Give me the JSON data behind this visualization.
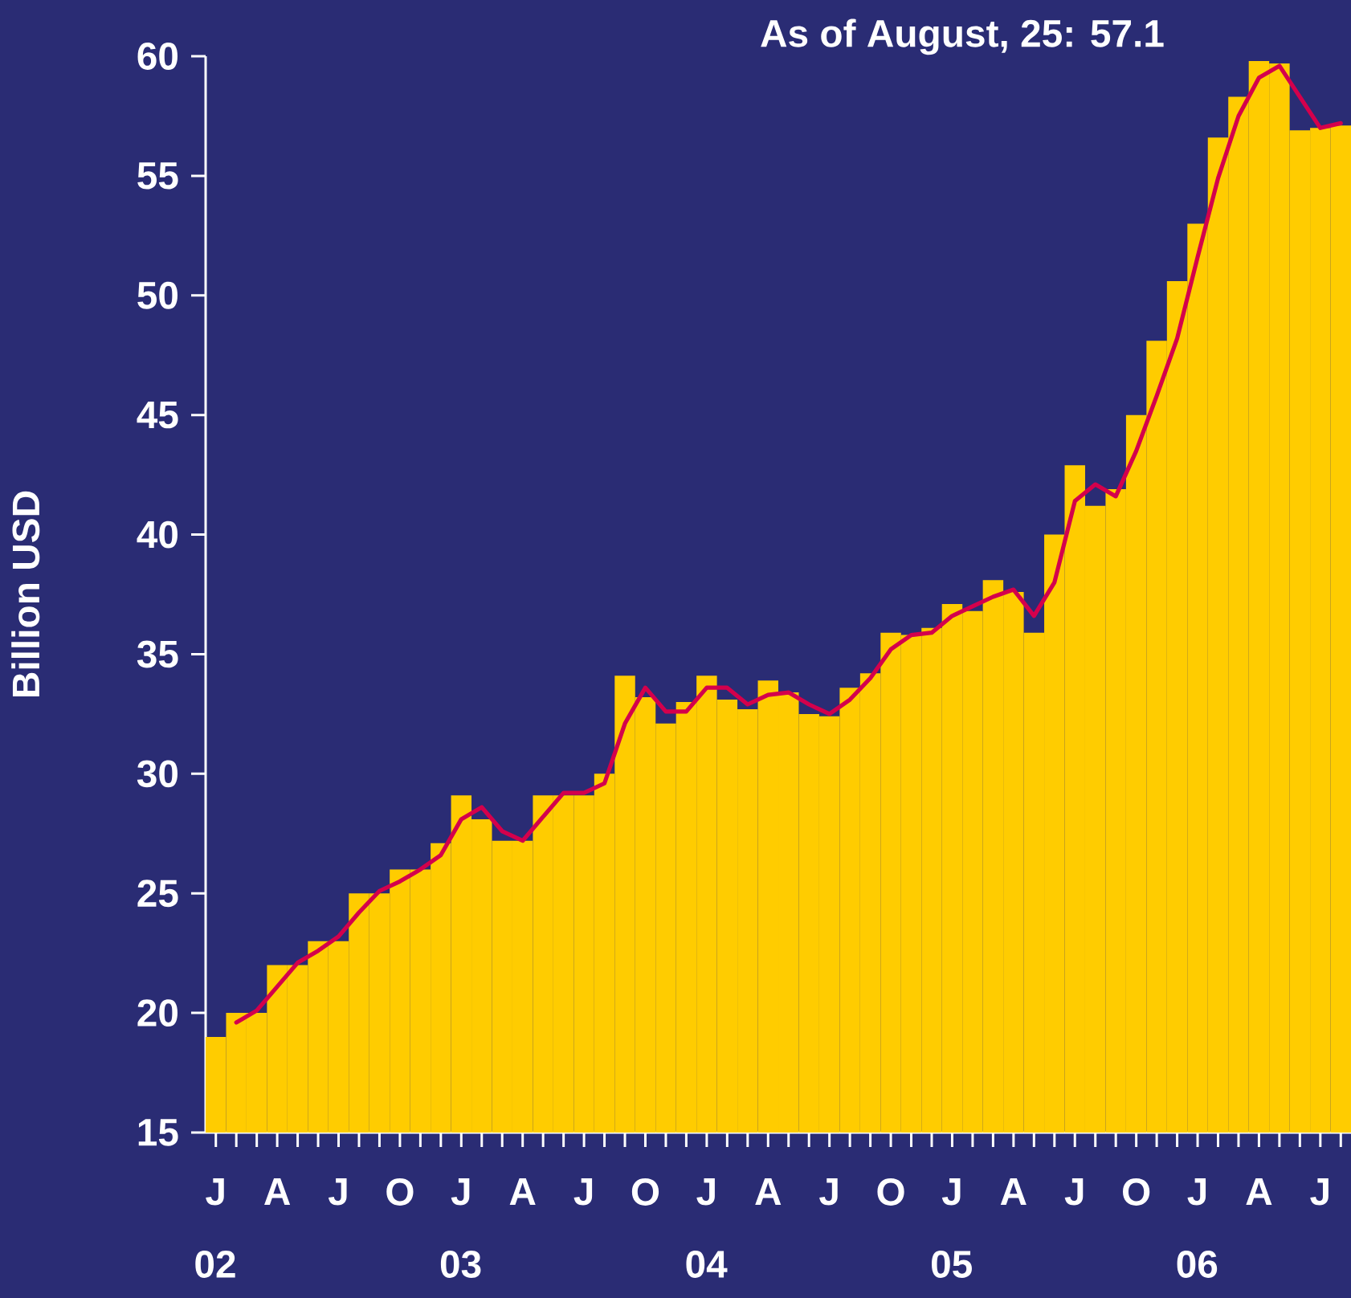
{
  "chart_data": {
    "type": "bar",
    "ylabel": "Billion USD",
    "annotations": [
      "As of August, 25: 57.1"
    ],
    "categories": [
      "J",
      null,
      null,
      "A",
      null,
      null,
      "J",
      null,
      null,
      "O",
      null,
      null,
      "J",
      null,
      null,
      "A",
      null,
      null,
      "J",
      null,
      null,
      "O",
      null,
      null,
      "J",
      null,
      null,
      "A",
      null,
      null,
      "J",
      null,
      null,
      "O",
      null,
      null,
      "J",
      null,
      null,
      "A",
      null,
      null,
      "J",
      null,
      null,
      "O",
      null,
      null,
      "J",
      null,
      null,
      "A",
      null,
      null,
      "J",
      null
    ],
    "series": [
      {
        "color": "#ffcc00",
        "values": [
          19.0,
          20.0,
          20.0,
          22.0,
          22.0,
          23.0,
          23.0,
          25.0,
          25.0,
          26.0,
          26.0,
          27.1,
          29.1,
          28.1,
          27.2,
          27.2,
          29.1,
          29.1,
          29.1,
          30.0,
          34.1,
          33.2,
          32.1,
          33.0,
          34.1,
          33.1,
          32.7,
          33.9,
          33.4,
          32.5,
          32.4,
          33.6,
          34.2,
          35.9,
          35.8,
          36.1,
          37.1,
          36.8,
          38.1,
          37.6,
          35.9,
          40.0,
          42.9,
          41.2,
          41.9,
          45.0,
          48.1,
          50.6,
          53.0,
          56.6,
          58.3,
          59.8,
          59.7,
          56.9,
          57.0,
          57.1
        ]
      },
      {
        "type": "line",
        "color": "#d4004c",
        "values": [
          null,
          19.6,
          20.1,
          21.1,
          22.1,
          22.6,
          23.2,
          24.2,
          25.1,
          25.5,
          26.0,
          26.6,
          28.1,
          28.6,
          27.6,
          27.2,
          28.2,
          29.2,
          29.2,
          29.6,
          32.1,
          33.6,
          32.6,
          32.6,
          33.6,
          33.6,
          32.9,
          33.3,
          33.4,
          32.9,
          32.5,
          33.1,
          34.0,
          35.2,
          35.8,
          35.9,
          36.6,
          37.0,
          37.4,
          37.7,
          36.6,
          38.0,
          41.4,
          42.1,
          41.6,
          43.5,
          45.8,
          48.2,
          51.6,
          54.9,
          57.5,
          59.1,
          59.6,
          58.3,
          57.0,
          57.2
        ]
      }
    ],
    "x2lim": [
      "2002-01",
      "2006-09"
    ],
    "x2ticks": [
      {
        "value": "2002",
        "label": "02"
      },
      {
        "value": "2003",
        "label": "03"
      },
      {
        "value": "2004",
        "label": "04"
      },
      {
        "value": "2005",
        "label": "05"
      },
      {
        "value": "2006",
        "label": "06"
      }
    ],
    "ylim": [
      15,
      60
    ],
    "yticks": [
      15,
      20,
      25,
      30,
      35,
      40,
      45,
      50,
      55,
      60
    ],
    "grid": false,
    "legend": false
  }
}
